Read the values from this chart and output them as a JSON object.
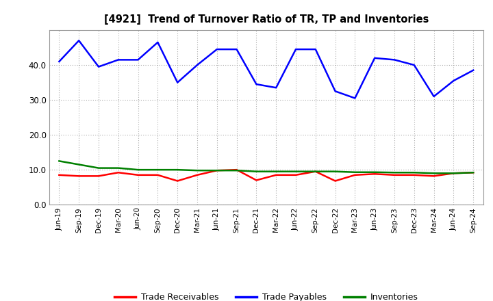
{
  "title": "[4921]  Trend of Turnover Ratio of TR, TP and Inventories",
  "x_labels": [
    "Jun-19",
    "Sep-19",
    "Dec-19",
    "Mar-20",
    "Jun-20",
    "Sep-20",
    "Dec-20",
    "Mar-21",
    "Jun-21",
    "Sep-21",
    "Dec-21",
    "Mar-22",
    "Jun-22",
    "Sep-22",
    "Dec-22",
    "Mar-23",
    "Jun-23",
    "Sep-23",
    "Dec-23",
    "Mar-24",
    "Jun-24",
    "Sep-24"
  ],
  "trade_receivables": [
    8.5,
    8.2,
    8.2,
    9.2,
    8.5,
    8.5,
    6.8,
    8.5,
    9.8,
    10.0,
    7.0,
    8.5,
    8.5,
    9.5,
    6.8,
    8.5,
    8.8,
    8.5,
    8.5,
    8.2,
    9.0,
    9.2
  ],
  "trade_payables": [
    41.0,
    47.0,
    39.5,
    41.5,
    41.5,
    46.5,
    35.0,
    40.0,
    44.5,
    44.5,
    34.5,
    33.5,
    44.5,
    44.5,
    32.5,
    30.5,
    42.0,
    41.5,
    40.0,
    31.0,
    35.5,
    38.5
  ],
  "inventories": [
    12.5,
    11.5,
    10.5,
    10.5,
    10.0,
    10.0,
    10.0,
    9.8,
    9.8,
    9.8,
    9.5,
    9.5,
    9.5,
    9.5,
    9.5,
    9.3,
    9.3,
    9.2,
    9.2,
    9.0,
    9.0,
    9.2
  ],
  "tr_color": "#ff0000",
  "tp_color": "#0000ff",
  "inv_color": "#008000",
  "ylim": [
    0.0,
    50.0
  ],
  "yticks": [
    0.0,
    10.0,
    20.0,
    30.0,
    40.0
  ],
  "background_color": "#ffffff",
  "plot_bg_color": "#ffffff",
  "grid_color": "#888888",
  "legend_labels": [
    "Trade Receivables",
    "Trade Payables",
    "Inventories"
  ]
}
